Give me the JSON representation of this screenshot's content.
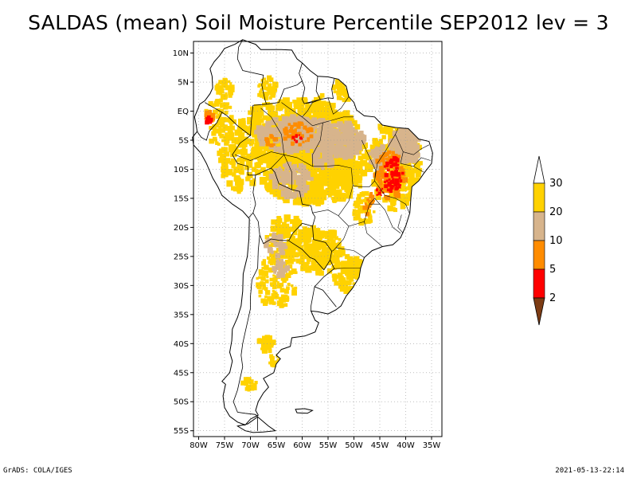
{
  "title": "SALDAS (mean) Soil Moisture Percentile SEP2012 lev = 3",
  "footer": {
    "left": "GrADS: COLA/IGES",
    "right": "2021-05-13-22:14"
  },
  "map": {
    "region": "South America",
    "lat_range": [
      -56,
      12
    ],
    "lon_range": [
      -81,
      -33
    ],
    "lat_ticks": [
      "10N",
      "5N",
      "EQ",
      "5S",
      "10S",
      "15S",
      "20S",
      "25S",
      "30S",
      "35S",
      "40S",
      "45S",
      "50S",
      "55S"
    ],
    "lon_ticks": [
      "80W",
      "75W",
      "70W",
      "65W",
      "60W",
      "55W",
      "50W",
      "45W",
      "40W",
      "35W"
    ],
    "gridlines": true
  },
  "legend": {
    "labels": [
      "30",
      "20",
      "10",
      "5",
      "2"
    ],
    "colors": {
      "above_30": "#ffffff",
      "20_30": "#ffd200",
      "10_20": "#d7b48c",
      "5_10": "#ff8c00",
      "2_5": "#ff0000",
      "below_2": "#7d3c14"
    }
  },
  "colors": {
    "yellow": "#ffd200",
    "tan": "#d7b48c",
    "orange": "#ff8c00",
    "red": "#ff0000",
    "brown": "#7d3c14"
  }
}
